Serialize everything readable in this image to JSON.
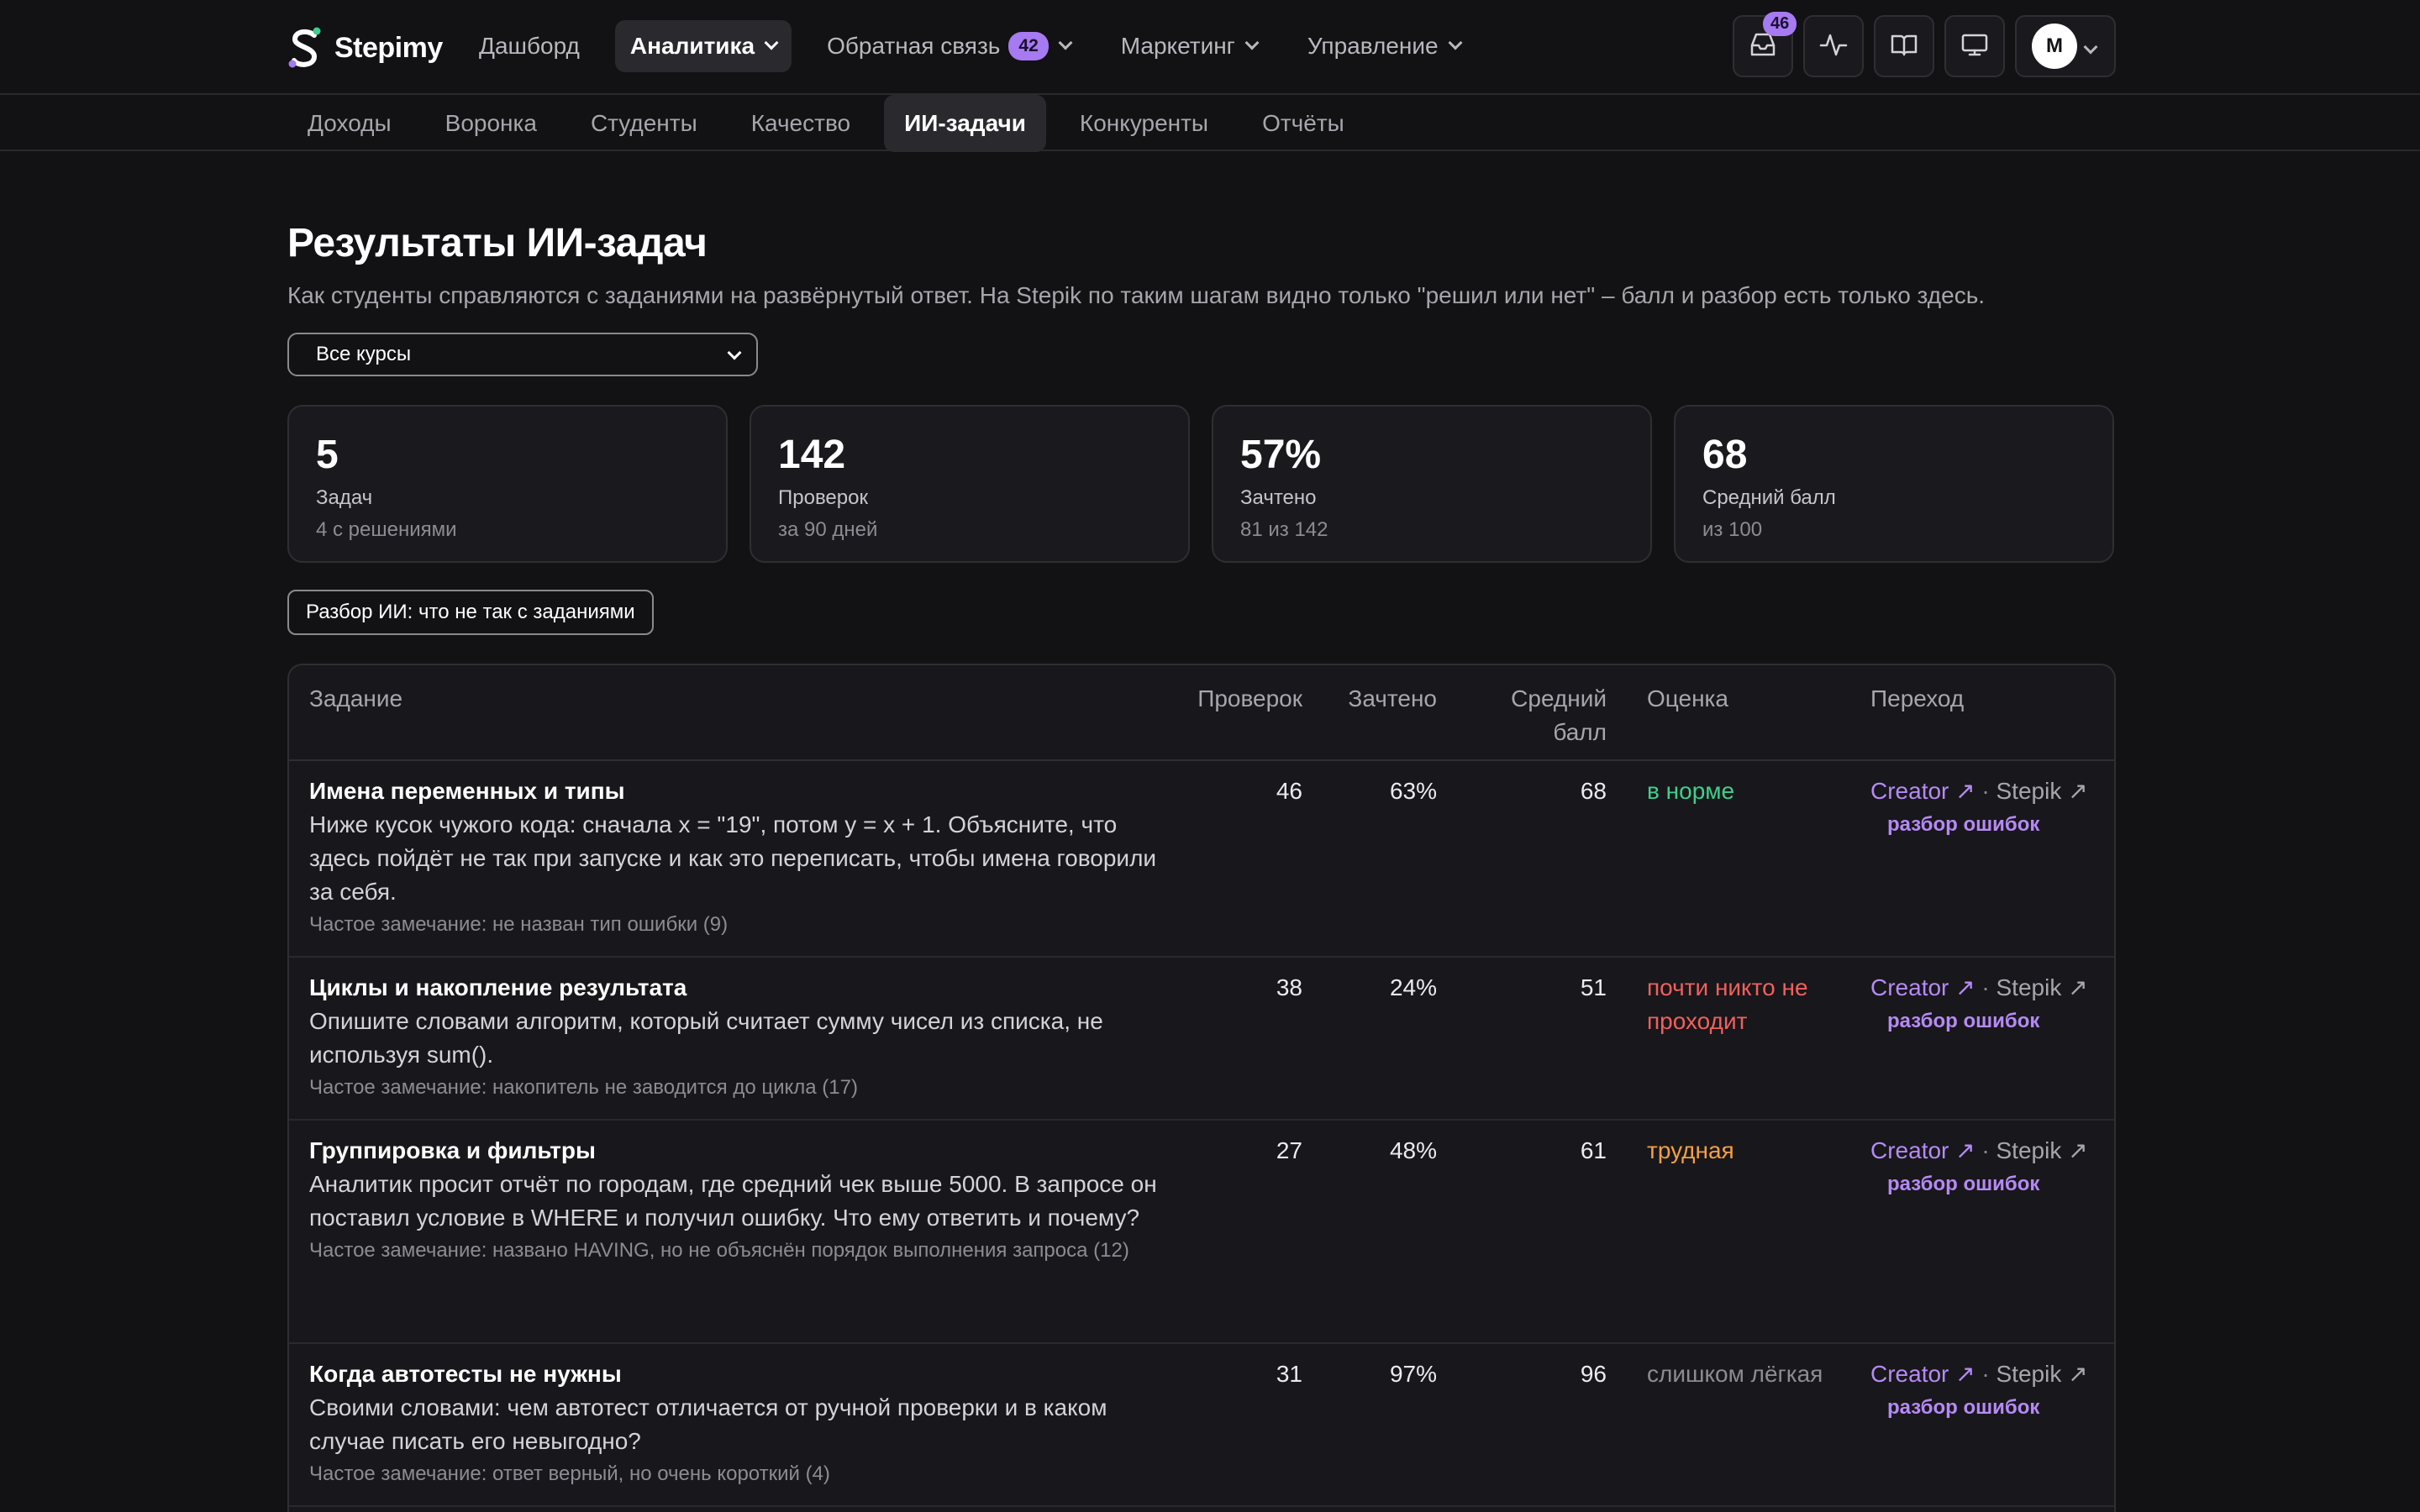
{
  "app": {
    "name": "Stepimy"
  },
  "nav": {
    "dashboard": "Дашборд",
    "analytics": "Аналитика",
    "feedback": "Обратная связь",
    "feedback_count": "42",
    "marketing": "Маркетинг",
    "management": "Управление"
  },
  "toolbar": {
    "inbox_count": "46",
    "user_initial": "M"
  },
  "subnav": {
    "tabs": [
      "Доходы",
      "Воронка",
      "Студенты",
      "Качество",
      "ИИ-задачи",
      "Конкуренты",
      "Отчёты"
    ],
    "active": "ИИ-задачи"
  },
  "page": {
    "title": "Результаты ИИ-задач",
    "subtitle": "Как студенты справляются с заданиями на развёрнутый ответ. На Stepik по таким шагам видно только \"решил или нет\" – балл и разбор есть только здесь.",
    "course_select": "Все курсы",
    "ai_button": "Разбор ИИ: что не так с заданиями"
  },
  "stats": [
    {
      "value": "5",
      "label": "Задач",
      "sub": "4 с решениями"
    },
    {
      "value": "142",
      "label": "Проверок",
      "sub": "за 90 дней"
    },
    {
      "value": "57%",
      "label": "Зачтено",
      "sub": "81 из 142"
    },
    {
      "value": "68",
      "label": "Средний балл",
      "sub": "из 100"
    }
  ],
  "table": {
    "headers": {
      "task": "Задание",
      "checks": "Проверок",
      "passed": "Зачтено",
      "avg_line1": "Средний",
      "avg_line2": "балл",
      "rating": "Оценка",
      "links": "Переход"
    },
    "link_creator": "Creator ↗",
    "link_dot": "·",
    "link_stepik": "Stepik ↗",
    "link_errors": "разбор ошибок",
    "rows": [
      {
        "title": "Имена переменных и типы",
        "desc": "Ниже кусок чужого кода: сначала x = \"19\", потом y = x + 1. Объясните, что здесь пойдёт не так при запуске и как это переписать, чтобы имена говорили за себя.",
        "note": "Частое замечание: не назван тип ошибки (9)",
        "checks": "46",
        "passed": "63%",
        "avg": "68",
        "rating": "в норме"
      },
      {
        "title": "Циклы и накопление результата",
        "desc": "Опишите словами алгоритм, который считает сумму чисел из списка, не используя sum().",
        "note": "Частое замечание: накопитель не заводится до цикла (17)",
        "checks": "38",
        "passed": "24%",
        "avg": "51",
        "rating": "почти никто не проходит"
      },
      {
        "title": "Группировка и фильтры",
        "desc": "Аналитик просит отчёт по городам, где средний чек выше 5000. В запросе он поставил условие в WHERE и получил ошибку. Что ему ответить и почему?",
        "note": "Частое замечание: названо HAVING, но не объяснён порядок выполнения запроса (12)",
        "checks": "27",
        "passed": "48%",
        "avg": "61",
        "rating": "трудная"
      },
      {
        "title": "Когда автотесты не нужны",
        "desc": "Своими словами: чем автотест отличается от ручной проверки и в каком случае писать его невыгодно?",
        "note": "Частое замечание: ответ верный, но очень короткий (4)",
        "checks": "31",
        "passed": "97%",
        "avg": "96",
        "rating": "слишком лёгкая"
      }
    ]
  }
}
